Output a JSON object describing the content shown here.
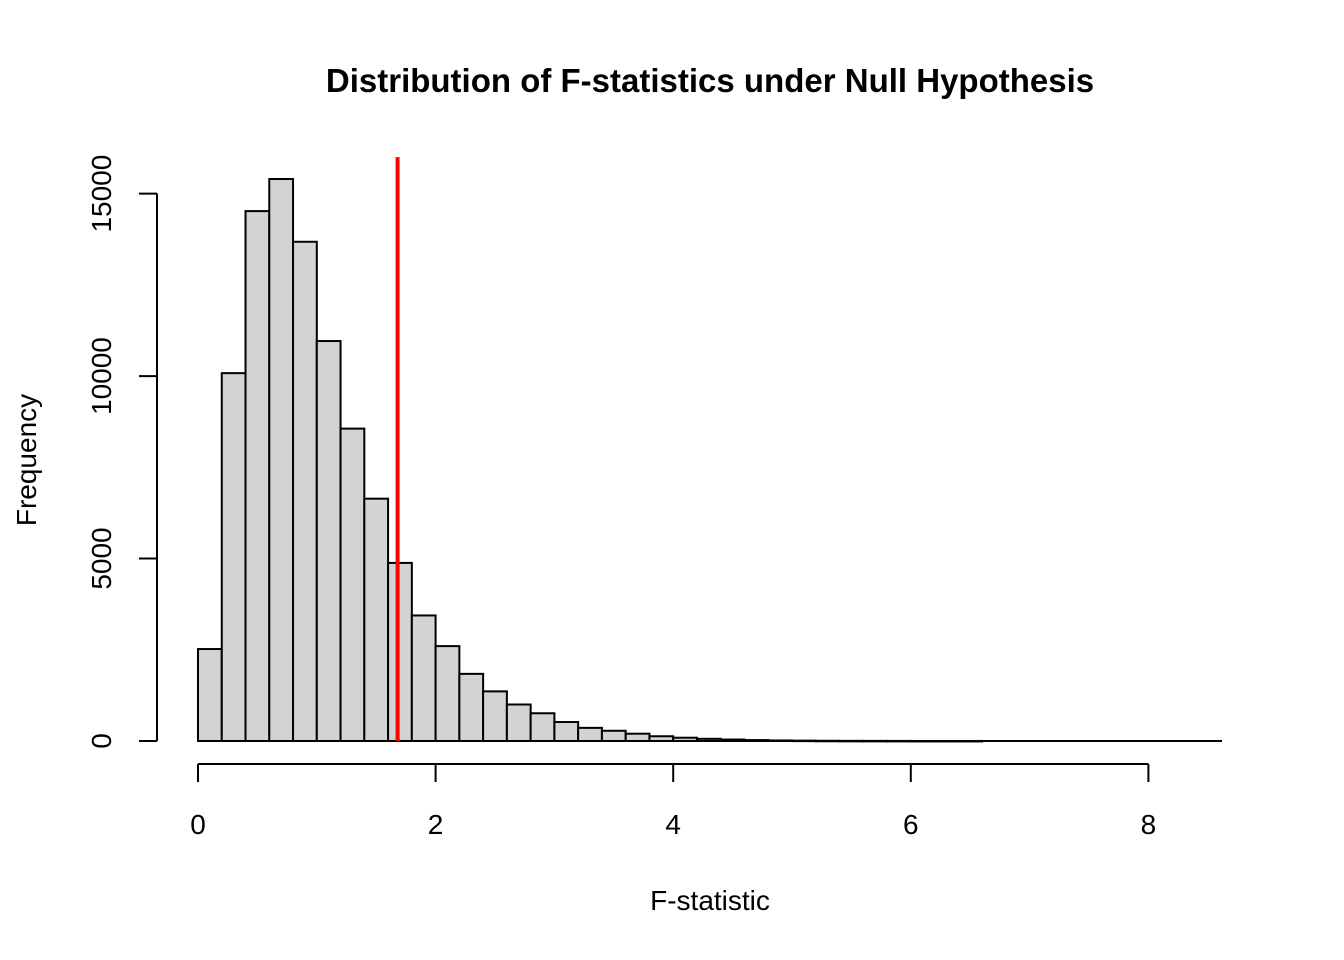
{
  "chart_data": {
    "type": "bar",
    "title": "Distribution of F-statistics under Null Hypothesis",
    "xlabel": "F-statistic",
    "ylabel": "Frequency",
    "xlim": [
      0,
      8.6
    ],
    "ylim": [
      0,
      16000
    ],
    "x_ticks": [
      0,
      2,
      4,
      6,
      8
    ],
    "y_ticks": [
      0,
      5000,
      10000,
      15000
    ],
    "bin_width": 0.2,
    "bin_starts": [
      0,
      0.2,
      0.4,
      0.6,
      0.8,
      1.0,
      1.2,
      1.4,
      1.6,
      1.8,
      2.0,
      2.2,
      2.4,
      2.6,
      2.8,
      3.0,
      3.2,
      3.4,
      3.6,
      3.8,
      4.0,
      4.2,
      4.4,
      4.6,
      4.8,
      5.0,
      5.2,
      5.4,
      5.6,
      5.8,
      6.0,
      6.2,
      6.4,
      6.6,
      6.8,
      7.0,
      7.2,
      7.4,
      7.6,
      7.8,
      8.0,
      8.2,
      8.4
    ],
    "values": [
      2520,
      10080,
      14520,
      15400,
      13680,
      10960,
      8560,
      6640,
      4880,
      3440,
      2600,
      1840,
      1360,
      1000,
      760,
      520,
      360,
      280,
      200,
      130,
      90,
      60,
      40,
      25,
      15,
      10,
      6,
      4,
      3,
      2,
      1,
      1,
      1,
      0,
      0,
      0,
      0,
      0,
      0,
      0,
      0,
      0,
      0
    ],
    "bar_fill": "#d3d3d3",
    "bar_stroke": "#000000",
    "reference_line": {
      "x": 1.68,
      "color": "#ff0000"
    },
    "grid": false
  }
}
